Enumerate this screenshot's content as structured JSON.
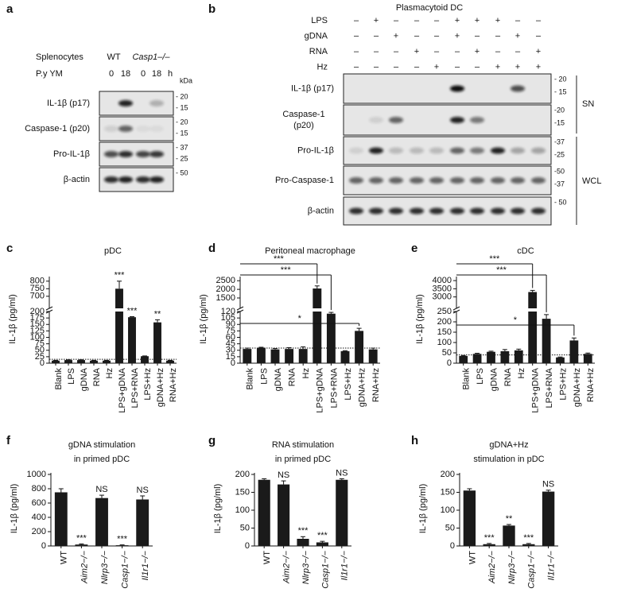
{
  "panel_labels": [
    "a",
    "b",
    "c",
    "d",
    "e",
    "f",
    "g",
    "h"
  ],
  "blot_a": {
    "sample_label": "Splenocytes",
    "groups": [
      "WT",
      "Casp1–/–"
    ],
    "condition_label": "P.y YM",
    "timepoints": [
      "0",
      "18",
      "0",
      "18"
    ],
    "unit": "h",
    "kda": "kDa",
    "rows": [
      {
        "label": [
          "IL-1β (p17)"
        ],
        "markers": [
          "- 20",
          "- 15"
        ]
      },
      {
        "label": [
          "Caspase-1 (p20)"
        ],
        "markers": [
          "- 20",
          "- 15"
        ]
      },
      {
        "label": [
          "Pro-IL-1β"
        ],
        "markers": [
          "- 37",
          "- 25"
        ]
      },
      {
        "label": [
          "β-actin"
        ],
        "markers": [
          "- 50"
        ]
      }
    ]
  },
  "blot_b": {
    "title": "Plasmacytoid DC",
    "treatments": [
      {
        "name": "LPS",
        "signs": [
          "–",
          "+",
          "–",
          "–",
          "–",
          "+",
          "+",
          "+",
          "–",
          "–"
        ]
      },
      {
        "name": "gDNA",
        "signs": [
          "–",
          "–",
          "+",
          "–",
          "–",
          "+",
          "–",
          "–",
          "+",
          "–"
        ]
      },
      {
        "name": "RNA",
        "signs": [
          "–",
          "–",
          "–",
          "+",
          "–",
          "–",
          "+",
          "–",
          "–",
          "+"
        ]
      },
      {
        "name": "Hz",
        "signs": [
          "–",
          "–",
          "–",
          "–",
          "+",
          "–",
          "–",
          "+",
          "+",
          "+"
        ]
      }
    ],
    "rows": [
      {
        "label": [
          "IL-1β (p17)"
        ],
        "markers": [
          "- 20",
          "- 15"
        ]
      },
      {
        "label": [
          "Caspase-1",
          "(p20)"
        ],
        "markers": [
          "-20",
          "-15"
        ]
      },
      {
        "label": [
          "Pro-IL-1β"
        ],
        "markers": [
          "-37",
          "-25"
        ]
      },
      {
        "label": [
          "Pro-Caspase-1"
        ],
        "markers": [
          "-50",
          "-37"
        ]
      },
      {
        "label": [
          "β-actin"
        ],
        "markers": [
          "- 50"
        ]
      }
    ],
    "groups": [
      "SN",
      "WCL"
    ]
  },
  "chart_data": [
    {
      "type": "bar",
      "title": [
        "pDC"
      ],
      "ylabel": "IL-1β (pg/ml)",
      "color": "#1a1a1a",
      "categories": [
        "Blank",
        "LPS",
        "gDNA",
        "RNA",
        "Hz",
        "LPS+gDNA",
        "LPS+RNA",
        "LPS+Hz",
        "gDNA+Hz",
        "RNA+Hz"
      ],
      "values": [
        10,
        12,
        12,
        10,
        10,
        750,
        178,
        27,
        158,
        10
      ],
      "errors": [
        1,
        1,
        1,
        1,
        1,
        50,
        2,
        1,
        10,
        1
      ],
      "annotations": [
        null,
        null,
        null,
        null,
        null,
        "***",
        "***",
        null,
        "**",
        null
      ],
      "segments": [
        {
          "ylim": [
            0,
            200
          ],
          "yticks": [
            0,
            25,
            50,
            75,
            100,
            125,
            150,
            175,
            200
          ]
        },
        {
          "ylim": [
            620,
            820
          ],
          "yticks": [
            700,
            750,
            800
          ]
        }
      ],
      "reference_line": 15
    },
    {
      "type": "bar",
      "title": [
        "Peritoneal macrophage"
      ],
      "ylabel": "IL-1β (pg/ml)",
      "color": "#1a1a1a",
      "categories": [
        "Blank",
        "LPS",
        "gDNA",
        "RNA",
        "Hz",
        "LPS+gDNA",
        "LPS+RNA",
        "LPS+Hz",
        "gDNA+Hz",
        "RNA+Hz"
      ],
      "values": [
        33,
        36,
        32,
        33,
        33,
        2050,
        115,
        28,
        75,
        32
      ],
      "errors": [
        2,
        1,
        2,
        3,
        5,
        150,
        3,
        1,
        6,
        3
      ],
      "segments": [
        {
          "ylim": [
            0,
            120
          ],
          "yticks": [
            0,
            15,
            30,
            45,
            60,
            75,
            90,
            105,
            120
          ]
        },
        {
          "ylim": [
            900,
            2650
          ],
          "yticks": [
            1500,
            2000,
            2500
          ]
        }
      ],
      "reference_line": 35,
      "brackets": [
        {
          "from": "Blank",
          "to": "LPS+gDNA",
          "label": "***"
        },
        {
          "from": "Blank",
          "to": "LPS+RNA",
          "label": "***"
        },
        {
          "from": "Blank",
          "to": "gDNA+Hz",
          "label": "*"
        }
      ]
    },
    {
      "type": "bar",
      "title": [
        "cDC"
      ],
      "ylabel": "IL-1β (pg/ml)",
      "color": "#1a1a1a",
      "categories": [
        "Blank",
        "LPS",
        "gDNA",
        "RNA",
        "Hz",
        "LPS+gDNA",
        "LPS+RNA",
        "LPS+Hz",
        "gDNA+Hz",
        "RNA+Hz"
      ],
      "values": [
        35,
        45,
        55,
        58,
        62,
        3300,
        215,
        28,
        110,
        45
      ],
      "errors": [
        2,
        3,
        3,
        8,
        6,
        100,
        20,
        2,
        12,
        4
      ],
      "segments": [
        {
          "ylim": [
            0,
            250
          ],
          "yticks": [
            0,
            50,
            100,
            150,
            200,
            250
          ]
        },
        {
          "ylim": [
            2300,
            4150
          ],
          "yticks": [
            3000,
            3500,
            4000
          ]
        }
      ],
      "reference_line": 40,
      "brackets": [
        {
          "from": "Blank",
          "to": "LPS+gDNA",
          "label": "***"
        },
        {
          "from": "Blank",
          "to": "LPS+RNA",
          "label": "***"
        },
        {
          "from": "Blank",
          "to": "gDNA+Hz",
          "label": "*"
        }
      ]
    },
    {
      "type": "bar",
      "title": [
        "gDNA stimulation",
        "in primed pDC"
      ],
      "ylabel": "IL-1β (pg/ml)",
      "color": "#1a1a1a",
      "categories": [
        "WT",
        "Aim2−/−",
        "Nlrp3−/−",
        "Casp1−/−",
        "Il1r1−/−"
      ],
      "italic_categories": [
        false,
        true,
        true,
        true,
        true
      ],
      "values": [
        750,
        20,
        670,
        10,
        650
      ],
      "errors": [
        50,
        8,
        40,
        5,
        50
      ],
      "annotations": [
        null,
        "***",
        "NS",
        "***",
        "NS"
      ],
      "segments": [
        {
          "ylim": [
            0,
            1000
          ],
          "yticks": [
            0,
            200,
            400,
            600,
            800,
            1000
          ]
        }
      ]
    },
    {
      "type": "bar",
      "title": [
        "RNA stimulation",
        "in primed pDC"
      ],
      "ylabel": "IL-1β (pg/ml)",
      "color": "#1a1a1a",
      "categories": [
        "WT",
        "Aim2−/−",
        "Nlrp3−/−",
        "Casp1−/−",
        "Il1r1−/−"
      ],
      "italic_categories": [
        false,
        true,
        true,
        true,
        true
      ],
      "values": [
        185,
        172,
        20,
        10,
        185
      ],
      "errors": [
        3,
        10,
        6,
        3,
        3
      ],
      "annotations": [
        null,
        "NS",
        "***",
        "***",
        "NS"
      ],
      "segments": [
        {
          "ylim": [
            0,
            200
          ],
          "yticks": [
            0,
            50,
            100,
            150,
            200
          ]
        }
      ]
    },
    {
      "type": "bar",
      "title": [
        "gDNA+Hz",
        "stimulation in pDC"
      ],
      "ylabel": "IL-1β (pg/ml)",
      "color": "#1a1a1a",
      "categories": [
        "WT",
        "Aim2−/−",
        "Nlrp3−/−",
        "Casp1−/−",
        "Il1r1−/−"
      ],
      "italic_categories": [
        false,
        true,
        true,
        true,
        true
      ],
      "values": [
        155,
        5,
        57,
        5,
        152
      ],
      "errors": [
        5,
        2,
        3,
        2,
        4
      ],
      "annotations": [
        "",
        "***",
        "**",
        "***",
        "NS"
      ],
      "segments": [
        {
          "ylim": [
            0,
            200
          ],
          "yticks": [
            0,
            50,
            100,
            150,
            200
          ]
        }
      ]
    }
  ]
}
